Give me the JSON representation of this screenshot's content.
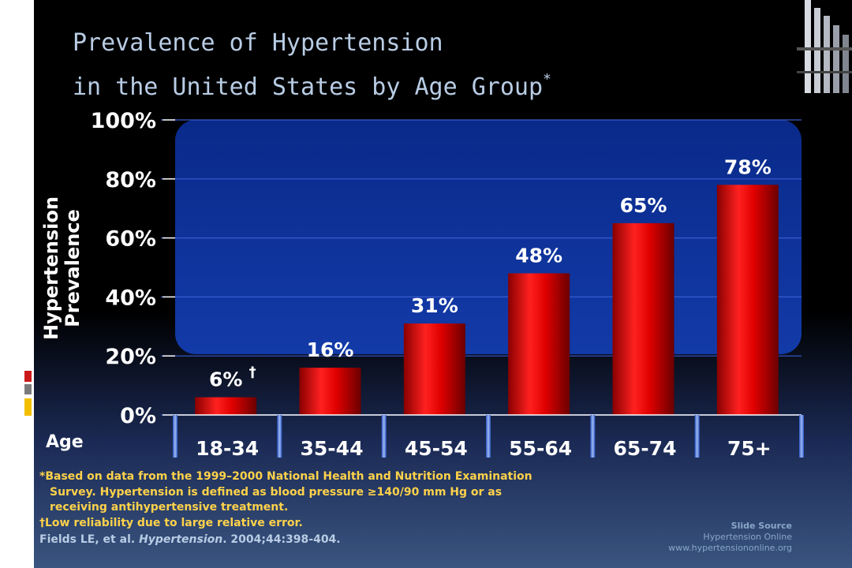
{
  "slide": {
    "title_line1": "Prevalence of Hypertension",
    "title_line2": "in the United States by Age Group",
    "title_mark": "*",
    "footnote_1a": "*Based on data from the 1999–2000 National Health and Nutrition Examination",
    "footnote_1b": "Survey.  Hypertension is defined as blood pressure ≥140/90 mm Hg or as",
    "footnote_1c": "receiving antihypertensive treatment.",
    "footnote_2": "†Low reliability due to large relative error.",
    "citation_authors": "Fields LE, et al. ",
    "citation_journal": "Hypertension",
    "citation_rest": ". 2004;44:398-404.",
    "source_header": "Slide Source",
    "source_name": "Hypertension Online",
    "source_url": "www.hypertensiononline.org",
    "colors": {
      "title": "#b8cce4",
      "bar": "#e00000",
      "plot_panel": "#0b2a8c",
      "footnote": "#ffd24a"
    }
  },
  "chart_data": {
    "type": "bar",
    "categories": [
      "18-34",
      "35-44",
      "45-54",
      "55-64",
      "65-74",
      "75+"
    ],
    "values": [
      6,
      16,
      31,
      48,
      65,
      78
    ],
    "data_labels": [
      "6%",
      "16%",
      "31%",
      "48%",
      "65%",
      "78%"
    ],
    "first_label_mark": "†",
    "ylabel_line1": "Hypertension",
    "ylabel_line2": "Prevalence",
    "xlabel": "Age",
    "ylim": [
      0,
      100
    ],
    "yticks": [
      0,
      20,
      40,
      60,
      80,
      100
    ],
    "ytick_labels": [
      "0%",
      "20%",
      "40%",
      "60%",
      "80%",
      "100%"
    ]
  }
}
